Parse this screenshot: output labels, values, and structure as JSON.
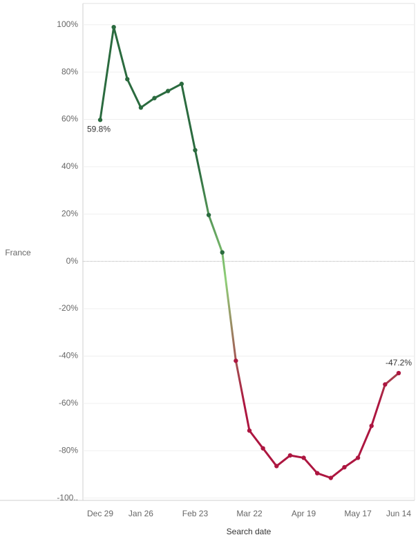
{
  "chart_data": {
    "type": "line",
    "y_label": "France",
    "x_label": "Search date",
    "categories": [
      "Dec 29",
      null,
      null,
      "Jan 26",
      null,
      null,
      null,
      "Feb 23",
      null,
      null,
      null,
      "Mar 22",
      null,
      null,
      null,
      "Apr 19",
      null,
      null,
      null,
      "May 17",
      null,
      null,
      "Jun 14"
    ],
    "values": [
      59.8,
      99,
      77,
      65,
      69,
      72,
      75,
      47,
      19.6,
      3.8,
      -42,
      -71.5,
      -79,
      -86.5,
      -82,
      -83,
      -89.5,
      -91.5,
      -87,
      -83,
      -69.5,
      -52,
      -47.2
    ],
    "value_labels": [
      "59.8%",
      null,
      null,
      null,
      null,
      null,
      null,
      null,
      null,
      null,
      null,
      null,
      null,
      null,
      null,
      null,
      null,
      null,
      null,
      null,
      null,
      null,
      "-47.2%"
    ],
    "positive_color": "#2b6b3f",
    "near_zero_color": "#8fcf78",
    "negative_color": "#ad1640",
    "ylim": [
      -101,
      109
    ],
    "yticks": [
      {
        "value": 100,
        "label": "100%"
      },
      {
        "value": 80,
        "label": "80%"
      },
      {
        "value": 60,
        "label": "60%"
      },
      {
        "value": 40,
        "label": "40%"
      },
      {
        "value": 20,
        "label": "20%"
      },
      {
        "value": 0,
        "label": "0%"
      },
      {
        "value": -20,
        "label": "-20%"
      },
      {
        "value": -40,
        "label": "-40%"
      },
      {
        "value": -60,
        "label": "-60%"
      },
      {
        "value": -80,
        "label": "-80%"
      },
      {
        "value": -100,
        "label": "-100.."
      }
    ],
    "grid": true
  }
}
